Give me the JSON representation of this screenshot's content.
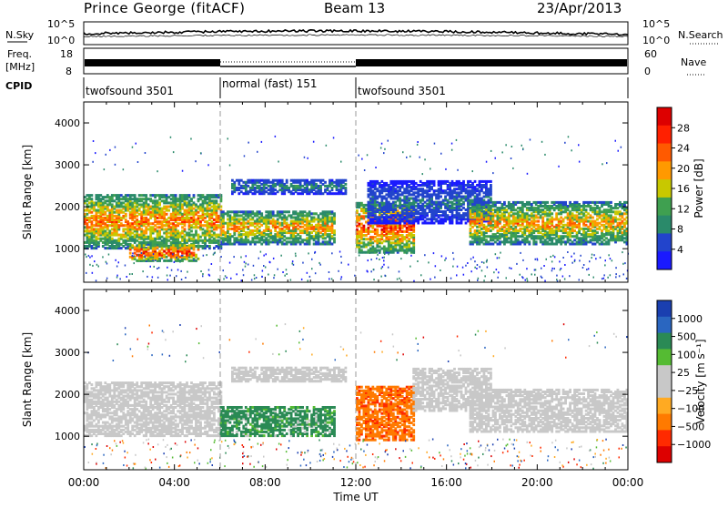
{
  "header": {
    "station": "Prince George (fitACF)",
    "beam": "Beam 13",
    "date": "23/Apr/2013"
  },
  "noise_panel": {
    "left_label": "N.Sky",
    "right_label": "N.Search",
    "ticks": [
      "10^5",
      "10^0"
    ]
  },
  "freq_panel": {
    "left_label": "Freq.",
    "left_unit": "[MHz]",
    "left_ticks": [
      "18",
      "8"
    ],
    "right_ticks": [
      "60",
      "0"
    ],
    "right_label": "Nave"
  },
  "cpid_panel": {
    "label": "CPID",
    "modes": [
      {
        "label": "twofsound 3501",
        "start_hour": 0,
        "end_hour": 6
      },
      {
        "label": "normal (fast) 151",
        "start_hour": 6,
        "end_hour": 12
      },
      {
        "label": "twofsound 3501",
        "start_hour": 12,
        "end_hour": 24
      }
    ]
  },
  "x_axis": {
    "label": "Time UT",
    "ticks": [
      "00:00",
      "04:00",
      "08:00",
      "12:00",
      "16:00",
      "20:00",
      "00:00"
    ]
  },
  "y_axis": {
    "label": "Slant Range [km]",
    "ticks": [
      "1000",
      "2000",
      "3000",
      "4000"
    ]
  },
  "power_colorbar": {
    "label": "Power [dB]",
    "ticks": [
      "4",
      "8",
      "12",
      "16",
      "20",
      "24",
      "28"
    ],
    "colors": [
      "#1a1aff",
      "#2244cc",
      "#2a8a6a",
      "#3fa050",
      "#c8c800",
      "#ff9900",
      "#ff5a00",
      "#ff2000",
      "#dd0000"
    ]
  },
  "velocity_colorbar": {
    "label": "Velocity [m s⁻¹]",
    "ticks": [
      "1000",
      "500",
      "100",
      "25",
      "−25",
      "−100",
      "−500",
      "−1000"
    ],
    "colors": [
      "#1a3fb0",
      "#2a66c0",
      "#2a8a55",
      "#55bb33",
      "#c8c8c8",
      "#c8c8c8",
      "#ffaa22",
      "#ff7a00",
      "#ff2a00",
      "#dd0000"
    ]
  },
  "chart_data": [
    {
      "type": "heatmap",
      "variable": "Power",
      "unit": "dB",
      "x": {
        "unit": "hour UT",
        "range": [
          0,
          24
        ]
      },
      "y": {
        "unit": "km",
        "range": [
          200,
          4500
        ]
      },
      "colorbar_range": [
        0,
        30
      ],
      "echo_regions": [
        {
          "t0": 0.0,
          "t1": 6.0,
          "r0": 1000,
          "r1": 2300,
          "peak": 24
        },
        {
          "t0": 2.0,
          "t1": 5.0,
          "r0": 700,
          "r1": 1100,
          "peak": 30
        },
        {
          "t0": 6.0,
          "t1": 11.0,
          "r0": 1100,
          "r1": 1900,
          "peak": 22
        },
        {
          "t0": 6.5,
          "t1": 11.5,
          "r0": 2300,
          "r1": 2650,
          "peak": 10
        },
        {
          "t0": 12.0,
          "t1": 14.5,
          "r0": 900,
          "r1": 2100,
          "peak": 28
        },
        {
          "t0": 12.5,
          "t1": 18.0,
          "r0": 1600,
          "r1": 2600,
          "peak": 8
        },
        {
          "t0": 17.0,
          "t1": 24.0,
          "r0": 1100,
          "r1": 2100,
          "peak": 22
        }
      ]
    },
    {
      "type": "heatmap",
      "variable": "Velocity",
      "unit": "m s⁻¹",
      "x": {
        "unit": "hour UT",
        "range": [
          0,
          24
        ]
      },
      "y": {
        "unit": "km",
        "range": [
          200,
          4500
        ]
      },
      "colorbar_range": [
        -1000,
        1000
      ],
      "echo_regions": [
        {
          "t0": 0.0,
          "t1": 6.0,
          "r0": 1000,
          "r1": 2300,
          "v": 0
        },
        {
          "t0": 6.0,
          "t1": 11.0,
          "r0": 1000,
          "r1": 1700,
          "v": 150
        },
        {
          "t0": 6.5,
          "t1": 11.5,
          "r0": 2300,
          "r1": 2650,
          "v": 0
        },
        {
          "t0": 12.0,
          "t1": 14.5,
          "r0": 900,
          "r1": 2200,
          "v": -400
        },
        {
          "t0": 14.5,
          "t1": 18.0,
          "r0": 1600,
          "r1": 2600,
          "v": 0
        },
        {
          "t0": 17.0,
          "t1": 24.0,
          "r0": 1100,
          "r1": 2100,
          "v": 0
        }
      ]
    }
  ]
}
